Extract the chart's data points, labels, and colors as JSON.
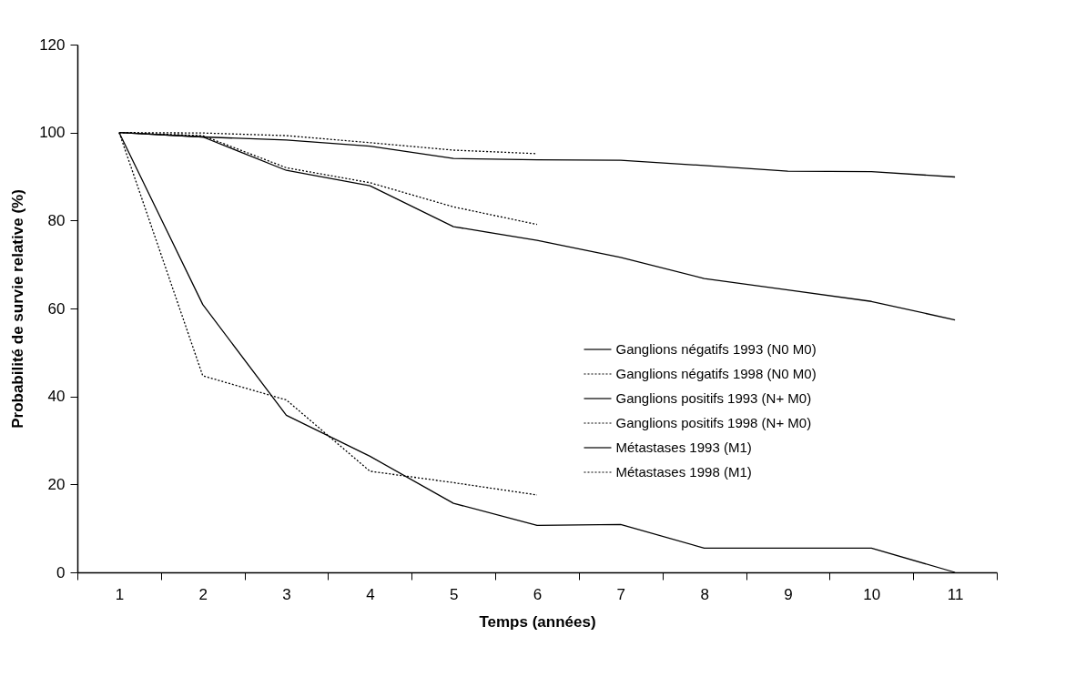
{
  "chart_data": {
    "type": "line",
    "xlabel": "Temps (années)",
    "ylabel": "Probabilité de survie relative (%)",
    "categories": [
      "1",
      "2",
      "3",
      "4",
      "5",
      "6",
      "7",
      "8",
      "9",
      "10",
      "11"
    ],
    "ylim": [
      0,
      120
    ],
    "yticks": [
      0,
      20,
      40,
      60,
      80,
      100,
      120
    ],
    "grid": false,
    "legend": "right",
    "marker": "none",
    "series": [
      {
        "name": "Ganglions négatifs 1993 (N0 M0)",
        "color": "#000000",
        "line_style": "solid",
        "values": [
          100,
          99,
          98.3,
          96.9,
          94.1,
          93.8,
          93.7,
          92.5,
          91.2,
          91.1,
          89.9
        ]
      },
      {
        "name": "Ganglions négatifs 1998 (N0 M0)",
        "color": "#000000",
        "line_style": "dotted",
        "values": [
          100,
          99.9,
          99.3,
          97.7,
          96,
          95.2,
          null,
          null,
          null,
          null,
          null
        ]
      },
      {
        "name": "Ganglions positifs 1993 (N+ M0)",
        "color": "#000000",
        "line_style": "solid",
        "values": [
          100,
          99,
          91.4,
          87.9,
          78.6,
          75.5,
          71.6,
          66.8,
          64.2,
          61.6,
          57.4
        ]
      },
      {
        "name": "Ganglions positifs 1998 (N+ M0)",
        "color": "#000000",
        "line_style": "dotted",
        "values": [
          100,
          99.3,
          92,
          88.6,
          83.1,
          79.1,
          null,
          null,
          null,
          null,
          null
        ]
      },
      {
        "name": "Métastases 1993 (M1)",
        "color": "#000000",
        "line_style": "solid",
        "values": [
          100,
          60.9,
          35.7,
          26.4,
          15.7,
          10.7,
          10.9,
          5.5,
          5.5,
          5.5,
          0
        ]
      },
      {
        "name": "Métastases 1998 (M1)",
        "color": "#000000",
        "line_style": "dotted",
        "values": [
          100,
          44.7,
          39.2,
          23,
          20.4,
          17.6,
          null,
          null,
          null,
          null,
          null
        ]
      }
    ]
  }
}
